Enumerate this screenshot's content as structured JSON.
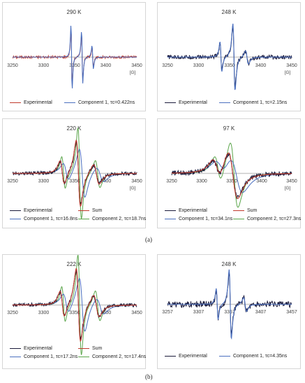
{
  "figure_labels": {
    "a": "(a)",
    "b": "(b)"
  },
  "colors": {
    "experimental_red_series": "#c0392b",
    "experimental_dark": "#1a1a3a",
    "component1": "#4a6fbf",
    "sum": "#c0392b",
    "component2": "#5aa54a",
    "axis": "#999999"
  },
  "chart_data": [
    {
      "id": "a1",
      "type": "line",
      "title": "290 K",
      "xlabel": "[G]",
      "xlim": [
        3250,
        3450
      ],
      "x_ticks": [
        "3250",
        "3300",
        "3350",
        "3400",
        "3450"
      ],
      "legend": [
        {
          "name": "Experimental",
          "color": "#c0392b"
        },
        {
          "name": "Component 1, τc=0.422ns",
          "color": "#4a6fbf"
        }
      ],
      "lines": [
        {
          "center": 3345,
          "amp": 1.0,
          "width": 1.5
        },
        {
          "center": 3362,
          "amp": 0.8,
          "width": 1.6
        },
        {
          "center": 3379,
          "amp": 0.35,
          "width": 1.8
        }
      ],
      "noise": 0.04
    },
    {
      "id": "a2",
      "type": "line",
      "title": "248 K",
      "xlabel": "[G]",
      "xlim": [
        3250,
        3450
      ],
      "x_ticks": [
        "3250",
        "3300",
        "3350",
        "3400",
        "3450"
      ],
      "legend": [
        {
          "name": "Experimental",
          "color": "#1a1a3a"
        },
        {
          "name": "Component 1, τc=2.15ns",
          "color": "#4a6fbf"
        }
      ],
      "lines": [
        {
          "center": 3336,
          "amp": 0.45,
          "width": 2.5
        },
        {
          "center": 3357,
          "amp": 1.0,
          "width": 3.0
        },
        {
          "center": 3378,
          "amp": 0.2,
          "width": 4.0
        }
      ],
      "noise": 0.06
    },
    {
      "id": "a3",
      "type": "line",
      "title": "220 K",
      "xlabel": "[G]",
      "xlim": [
        3250,
        3450
      ],
      "x_ticks": [
        "3250",
        "3300",
        "3350",
        "3400",
        "3450"
      ],
      "legend": [
        {
          "name": "Experimental",
          "color": "#1a1a3a"
        },
        {
          "name": "Sum",
          "color": "#c0392b"
        },
        {
          "name": "Component 1, τc=16.8ns",
          "color": "#4a6fbf"
        },
        {
          "name": "Component 2, τc=18.7ns",
          "color": "#5aa54a"
        }
      ],
      "lines": [
        {
          "center": 3330,
          "amp": 0.35,
          "width": 6
        },
        {
          "center": 3356,
          "amp": 1.0,
          "width": 6
        },
        {
          "center": 3385,
          "amp": 0.3,
          "width": 8
        }
      ],
      "noise": 0.05
    },
    {
      "id": "a4",
      "type": "line",
      "title": "97 K",
      "xlabel": "[G]",
      "xlim": [
        3250,
        3450
      ],
      "x_ticks": [
        "3250",
        "3300",
        "3350",
        "3400",
        "3450"
      ],
      "legend": [
        {
          "name": "Experimental",
          "color": "#1a1a3a"
        },
        {
          "name": "Sum",
          "color": "#c0392b"
        },
        {
          "name": "Component 1, τc=34.1ns",
          "color": "#4a6fbf"
        },
        {
          "name": "Component 2, τc=27.3ns",
          "color": "#5aa54a"
        }
      ],
      "lines": [
        {
          "center": 3325,
          "amp": 0.4,
          "width": 12
        },
        {
          "center": 3352,
          "amp": 1.0,
          "width": 14
        }
      ],
      "noise": 0.09
    },
    {
      "id": "b1",
      "type": "line",
      "title": "222 K",
      "xlabel": "",
      "xlim": [
        3250,
        3450
      ],
      "x_ticks": [
        "3250",
        "3300",
        "3350",
        "3400",
        "3450"
      ],
      "legend": [
        {
          "name": "Experimental",
          "color": "#1a1a3a"
        },
        {
          "name": "Sum",
          "color": "#c0392b"
        },
        {
          "name": "Component 1, τc=17.2ns",
          "color": "#4a6fbf"
        },
        {
          "name": "Component 2, τc=17.4ns",
          "color": "#5aa54a"
        }
      ],
      "lines": [
        {
          "center": 3330,
          "amp": 0.35,
          "width": 6
        },
        {
          "center": 3356,
          "amp": 1.0,
          "width": 6
        },
        {
          "center": 3385,
          "amp": 0.3,
          "width": 8
        }
      ],
      "noise": 0.05
    },
    {
      "id": "b2",
      "type": "line",
      "title": "248 K",
      "xlabel": "",
      "xlim": [
        3257,
        3457
      ],
      "x_ticks": [
        "3257",
        "3307",
        "3357",
        "3407",
        "3457"
      ],
      "legend": [
        {
          "name": "Experimental",
          "color": "#1a1a3a"
        },
        {
          "name": "Component 1, τc=4.35ns",
          "color": "#4a6fbf"
        }
      ],
      "lines": [
        {
          "center": 3337,
          "amp": 0.45,
          "width": 2.5
        },
        {
          "center": 3358,
          "amp": 1.0,
          "width": 3.0
        },
        {
          "center": 3382,
          "amp": 0.2,
          "width": 4.0
        }
      ],
      "noise": 0.09
    }
  ]
}
